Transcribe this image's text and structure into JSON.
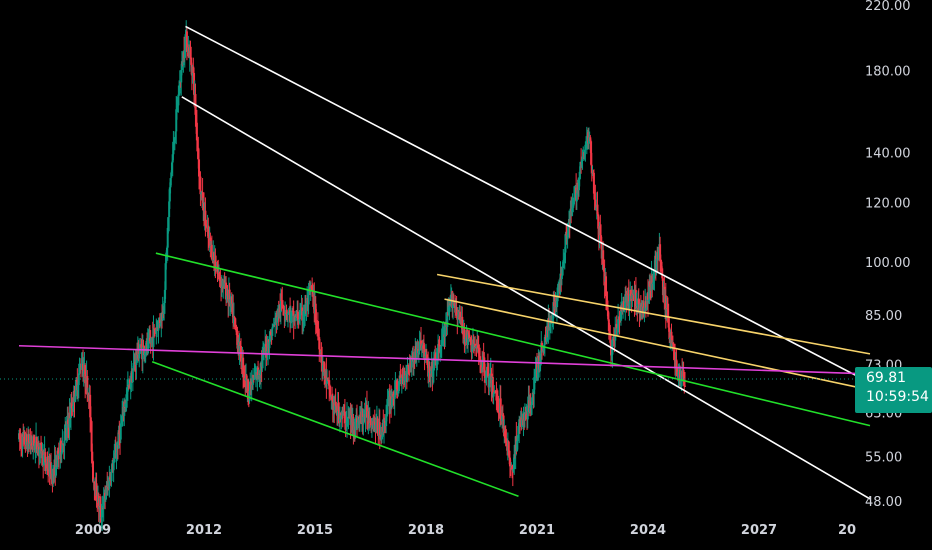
{
  "chart_data": {
    "type": "candlestick",
    "y_scale": "log",
    "ylim": [
      47,
      225
    ],
    "xlim": [
      2007.0,
      2030.0
    ],
    "y_ticks": [
      "220.00",
      "180.00",
      "140.00",
      "120.00",
      "100.00",
      "85.00",
      "73.00",
      "63.00",
      "55.00",
      "48.00"
    ],
    "x_ticks": [
      "2009",
      "2012",
      "2015",
      "2018",
      "2021",
      "2024",
      "2027",
      "20"
    ],
    "last_price": "69.81",
    "countdown": "10:59:54",
    "colors": {
      "up": "#089981",
      "down": "#f23645",
      "badge": "#089981",
      "white_lines": "#ffffff",
      "green_lines": "#22e02a",
      "yellow_lines": "#f7d36a",
      "magenta_line": "#e040d8",
      "dotted": "#089981"
    },
    "price_path": [
      [
        2007.0,
        58
      ],
      [
        2007.5,
        57
      ],
      [
        2007.9,
        52
      ],
      [
        2008.3,
        60
      ],
      [
        2008.7,
        74
      ],
      [
        2008.9,
        66
      ],
      [
        2009.0,
        52
      ],
      [
        2009.2,
        46
      ],
      [
        2009.6,
        55
      ],
      [
        2009.9,
        66
      ],
      [
        2010.2,
        76
      ],
      [
        2010.5,
        77
      ],
      [
        2010.9,
        86
      ],
      [
        2011.1,
        130
      ],
      [
        2011.3,
        165
      ],
      [
        2011.5,
        200
      ],
      [
        2011.7,
        180
      ],
      [
        2011.9,
        125
      ],
      [
        2012.1,
        108
      ],
      [
        2012.4,
        96
      ],
      [
        2012.7,
        89
      ],
      [
        2012.9,
        79
      ],
      [
        2013.2,
        67
      ],
      [
        2013.5,
        72
      ],
      [
        2013.8,
        80
      ],
      [
        2014.1,
        88
      ],
      [
        2014.4,
        84
      ],
      [
        2014.7,
        85
      ],
      [
        2014.9,
        92
      ],
      [
        2015.0,
        86
      ],
      [
        2015.2,
        73
      ],
      [
        2015.5,
        64
      ],
      [
        2015.8,
        62
      ],
      [
        2016.1,
        61
      ],
      [
        2016.4,
        63
      ],
      [
        2016.8,
        59
      ],
      [
        2017.0,
        65
      ],
      [
        2017.3,
        69
      ],
      [
        2017.6,
        74
      ],
      [
        2017.9,
        78
      ],
      [
        2018.1,
        70
      ],
      [
        2018.3,
        75
      ],
      [
        2018.5,
        80
      ],
      [
        2018.7,
        90
      ],
      [
        2018.9,
        84
      ],
      [
        2019.1,
        79
      ],
      [
        2019.4,
        76
      ],
      [
        2019.8,
        68
      ],
      [
        2020.0,
        64
      ],
      [
        2020.2,
        57
      ],
      [
        2020.3,
        52
      ],
      [
        2020.5,
        60
      ],
      [
        2020.8,
        64
      ],
      [
        2021.0,
        72
      ],
      [
        2021.3,
        82
      ],
      [
        2021.6,
        92
      ],
      [
        2021.8,
        110
      ],
      [
        2022.0,
        120
      ],
      [
        2022.2,
        135
      ],
      [
        2022.4,
        148
      ],
      [
        2022.6,
        118
      ],
      [
        2022.8,
        99
      ],
      [
        2023.0,
        76
      ],
      [
        2023.3,
        87
      ],
      [
        2023.6,
        90
      ],
      [
        2023.9,
        86
      ],
      [
        2024.1,
        95
      ],
      [
        2024.3,
        104
      ],
      [
        2024.4,
        92
      ],
      [
        2024.6,
        80
      ],
      [
        2024.8,
        71
      ],
      [
        2025.0,
        69.81
      ]
    ],
    "trendlines": [
      {
        "color": "white",
        "from": [
          2011.5,
          206
        ],
        "to": [
          2030.0,
          69
        ]
      },
      {
        "color": "white",
        "from": [
          2011.4,
          166
        ],
        "to": [
          2030.0,
          48.3
        ]
      },
      {
        "color": "green",
        "from": [
          2010.7,
          102.7
        ],
        "to": [
          2030.0,
          60.5
        ]
      },
      {
        "color": "green",
        "from": [
          2010.6,
          73.6
        ],
        "to": [
          2020.5,
          48.7
        ]
      },
      {
        "color": "yellow",
        "from": [
          2018.3,
          96.2
        ],
        "to": [
          2030.0,
          75.4
        ]
      },
      {
        "color": "yellow",
        "from": [
          2018.5,
          89.2
        ],
        "to": [
          2030.0,
          67.5
        ]
      },
      {
        "color": "magenta",
        "from": [
          2007.0,
          77.3
        ],
        "to": [
          2030.0,
          70.9
        ]
      }
    ]
  }
}
